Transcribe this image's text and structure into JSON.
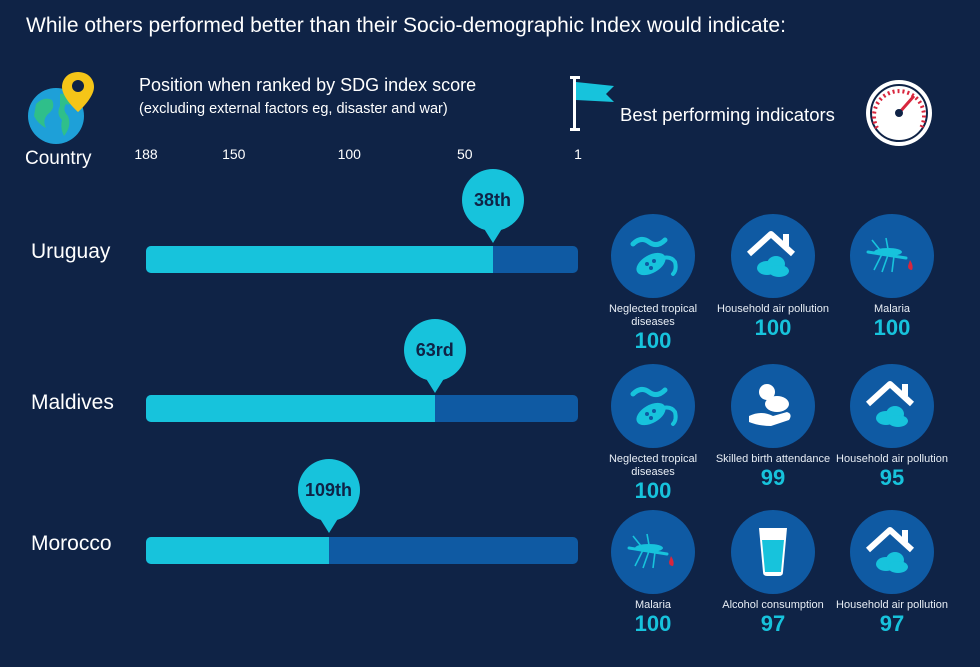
{
  "header": {
    "title": "While others performed better than their Socio-demographic Index would indicate:",
    "country_label": "Country",
    "axis_title": "Position when ranked by SDG index score",
    "axis_subtitle": "(excluding external factors eg, disaster and war)",
    "best_label": "Best performing indicators"
  },
  "colors": {
    "background": "#0f2346",
    "bar_fill": "#17c3dc",
    "bar_track": "#0f5aa3",
    "icon_circle": "#0f5aa3",
    "accent_pin": "#f5c518"
  },
  "chart_data": {
    "type": "bar",
    "axis": {
      "ticks": [
        "188",
        "150",
        "100",
        "50",
        "1"
      ],
      "range": [
        188,
        1
      ]
    },
    "countries": [
      {
        "name": "Uruguay",
        "rank": 38,
        "rank_label": "38th",
        "indicators": [
          {
            "label": "Neglected tropical diseases",
            "value": "100",
            "icon": "bacteria-icon"
          },
          {
            "label": "Household air pollution",
            "value": "100",
            "icon": "house-smoke-icon"
          },
          {
            "label": "Malaria",
            "value": "100",
            "icon": "mosquito-icon"
          }
        ]
      },
      {
        "name": "Maldives",
        "rank": 63,
        "rank_label": "63rd",
        "indicators": [
          {
            "label": "Neglected tropical diseases",
            "value": "100",
            "icon": "bacteria-icon"
          },
          {
            "label": "Skilled birth attendance",
            "value": "99",
            "icon": "baby-hands-icon"
          },
          {
            "label": "Household air pollution",
            "value": "95",
            "icon": "house-smoke-icon"
          }
        ]
      },
      {
        "name": "Morocco",
        "rank": 109,
        "rank_label": "109th",
        "indicators": [
          {
            "label": "Malaria",
            "value": "100",
            "icon": "mosquito-icon"
          },
          {
            "label": "Alcohol consumption",
            "value": "97",
            "icon": "glass-icon"
          },
          {
            "label": "Household air pollution",
            "value": "97",
            "icon": "house-smoke-icon"
          }
        ]
      }
    ]
  }
}
